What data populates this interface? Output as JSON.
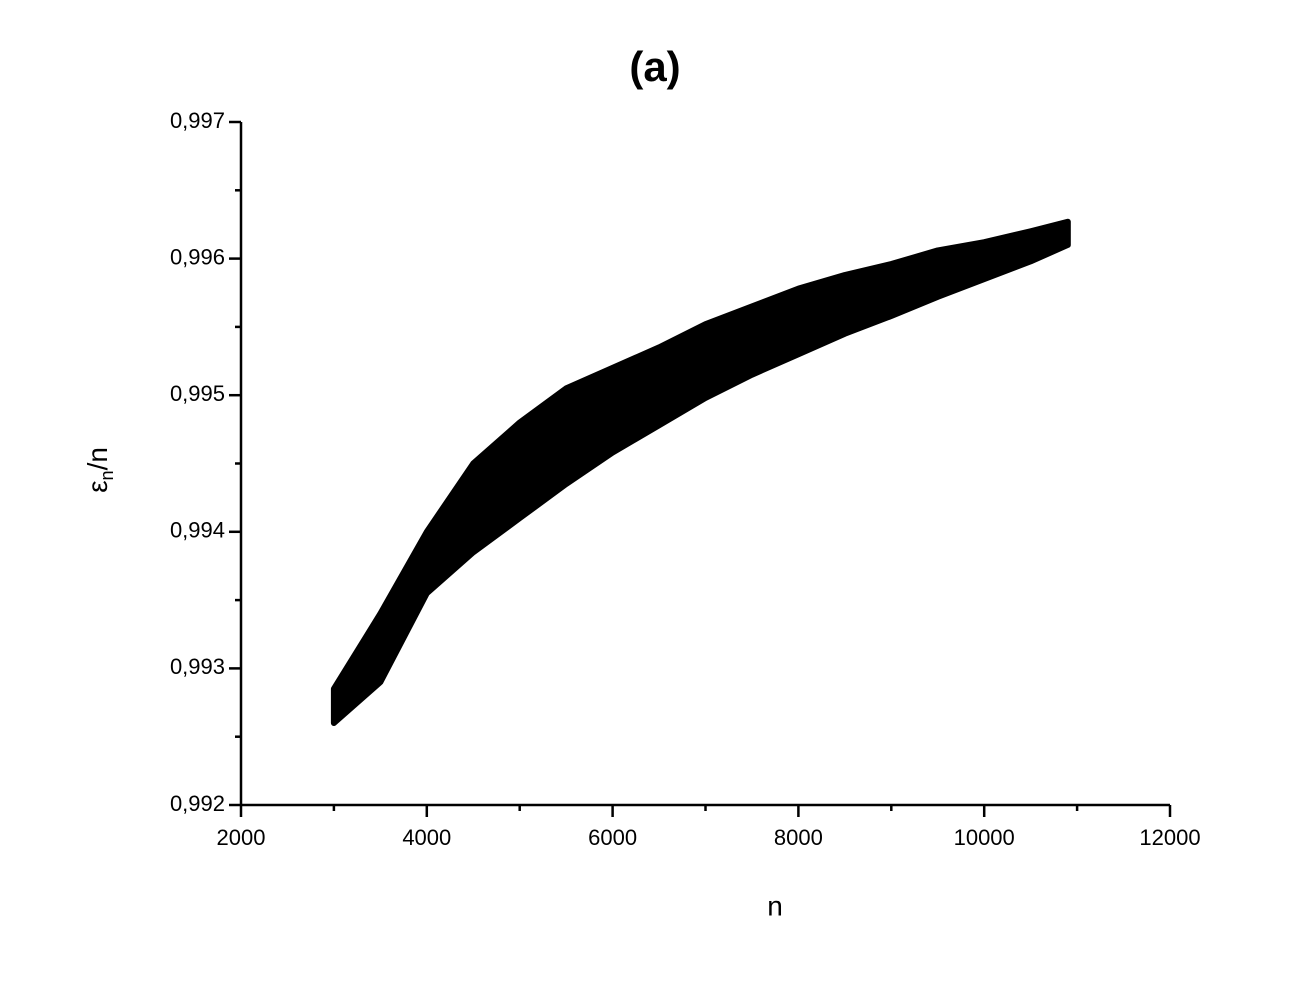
{
  "chart_data": {
    "type": "band",
    "title": "(a)",
    "x_label": "n",
    "y_label": {
      "symbol": "ε",
      "sub": "n",
      "rest": "/n"
    },
    "color": "#000000",
    "x": [
      3000,
      3500,
      4000,
      4500,
      5000,
      5500,
      6000,
      6500,
      7000,
      7500,
      8000,
      8500,
      9000,
      9500,
      10000,
      10500,
      10900
    ],
    "upper": [
      0.99285,
      0.9934,
      0.994,
      0.9945,
      0.9948,
      0.99505,
      0.9952,
      0.99535,
      0.99552,
      0.99565,
      0.99578,
      0.99588,
      0.99596,
      0.99606,
      0.99612,
      0.9962,
      0.99627
    ],
    "lower": [
      0.9926,
      0.9929,
      0.99355,
      0.99385,
      0.9941,
      0.99435,
      0.99458,
      0.99478,
      0.99498,
      0.99515,
      0.9953,
      0.99545,
      0.99558,
      0.99572,
      0.99585,
      0.99598,
      0.9961
    ],
    "xlim": [
      2000,
      12000
    ],
    "xticks": [
      2000,
      4000,
      6000,
      8000,
      10000,
      12000
    ],
    "ylim": [
      0.992,
      0.997
    ],
    "yticks": [
      {
        "value": 0.992,
        "label": "0,992"
      },
      {
        "value": 0.993,
        "label": "0,993"
      },
      {
        "value": 0.994,
        "label": "0,994"
      },
      {
        "value": 0.995,
        "label": "0,995"
      },
      {
        "value": 0.996,
        "label": "0,996"
      },
      {
        "value": 0.997,
        "label": "0,997"
      }
    ],
    "grid": false
  }
}
